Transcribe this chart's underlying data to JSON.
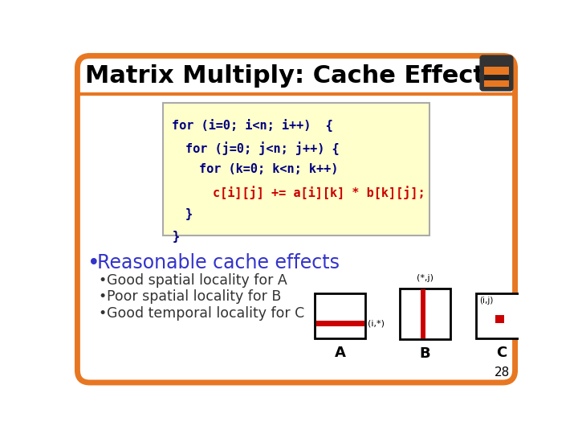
{
  "title": "Matrix Multiply: Cache Effects",
  "title_color": "#000000",
  "title_fontsize": 22,
  "bg_color": "#ffffff",
  "outer_border_color": "#E87722",
  "code_lines": [
    "for (i=0; i<n; i++)  {",
    "for (j=0; j<n; j++) {",
    "for (k=0; k<n; k++)",
    "c[i][j] += a[i][k] * b[k][j];",
    "}",
    "}"
  ],
  "code_indents": [
    0,
    1,
    2,
    3,
    1,
    0
  ],
  "code_highlight_line": 3,
  "code_color": "#000080",
  "code_highlight_color": "#cc0000",
  "code_bg": "#ffffcc",
  "bullet_main": "Reasonable cache effects",
  "bullet_main_color": "#3333cc",
  "bullet_main_size": 17,
  "bullets": [
    "Good spatial locality for A",
    "Poor spatial locality for B",
    "Good temporal locality for C"
  ],
  "bullet_color": "#333333",
  "bullet_size": 12.5,
  "label_A": "A",
  "label_B": "B",
  "label_C": "C",
  "label_i_star": "(i,*)",
  "label_star_j": "(*,j)",
  "label_ij": "(i,j)",
  "red_color": "#cc0000",
  "page_number": "28"
}
